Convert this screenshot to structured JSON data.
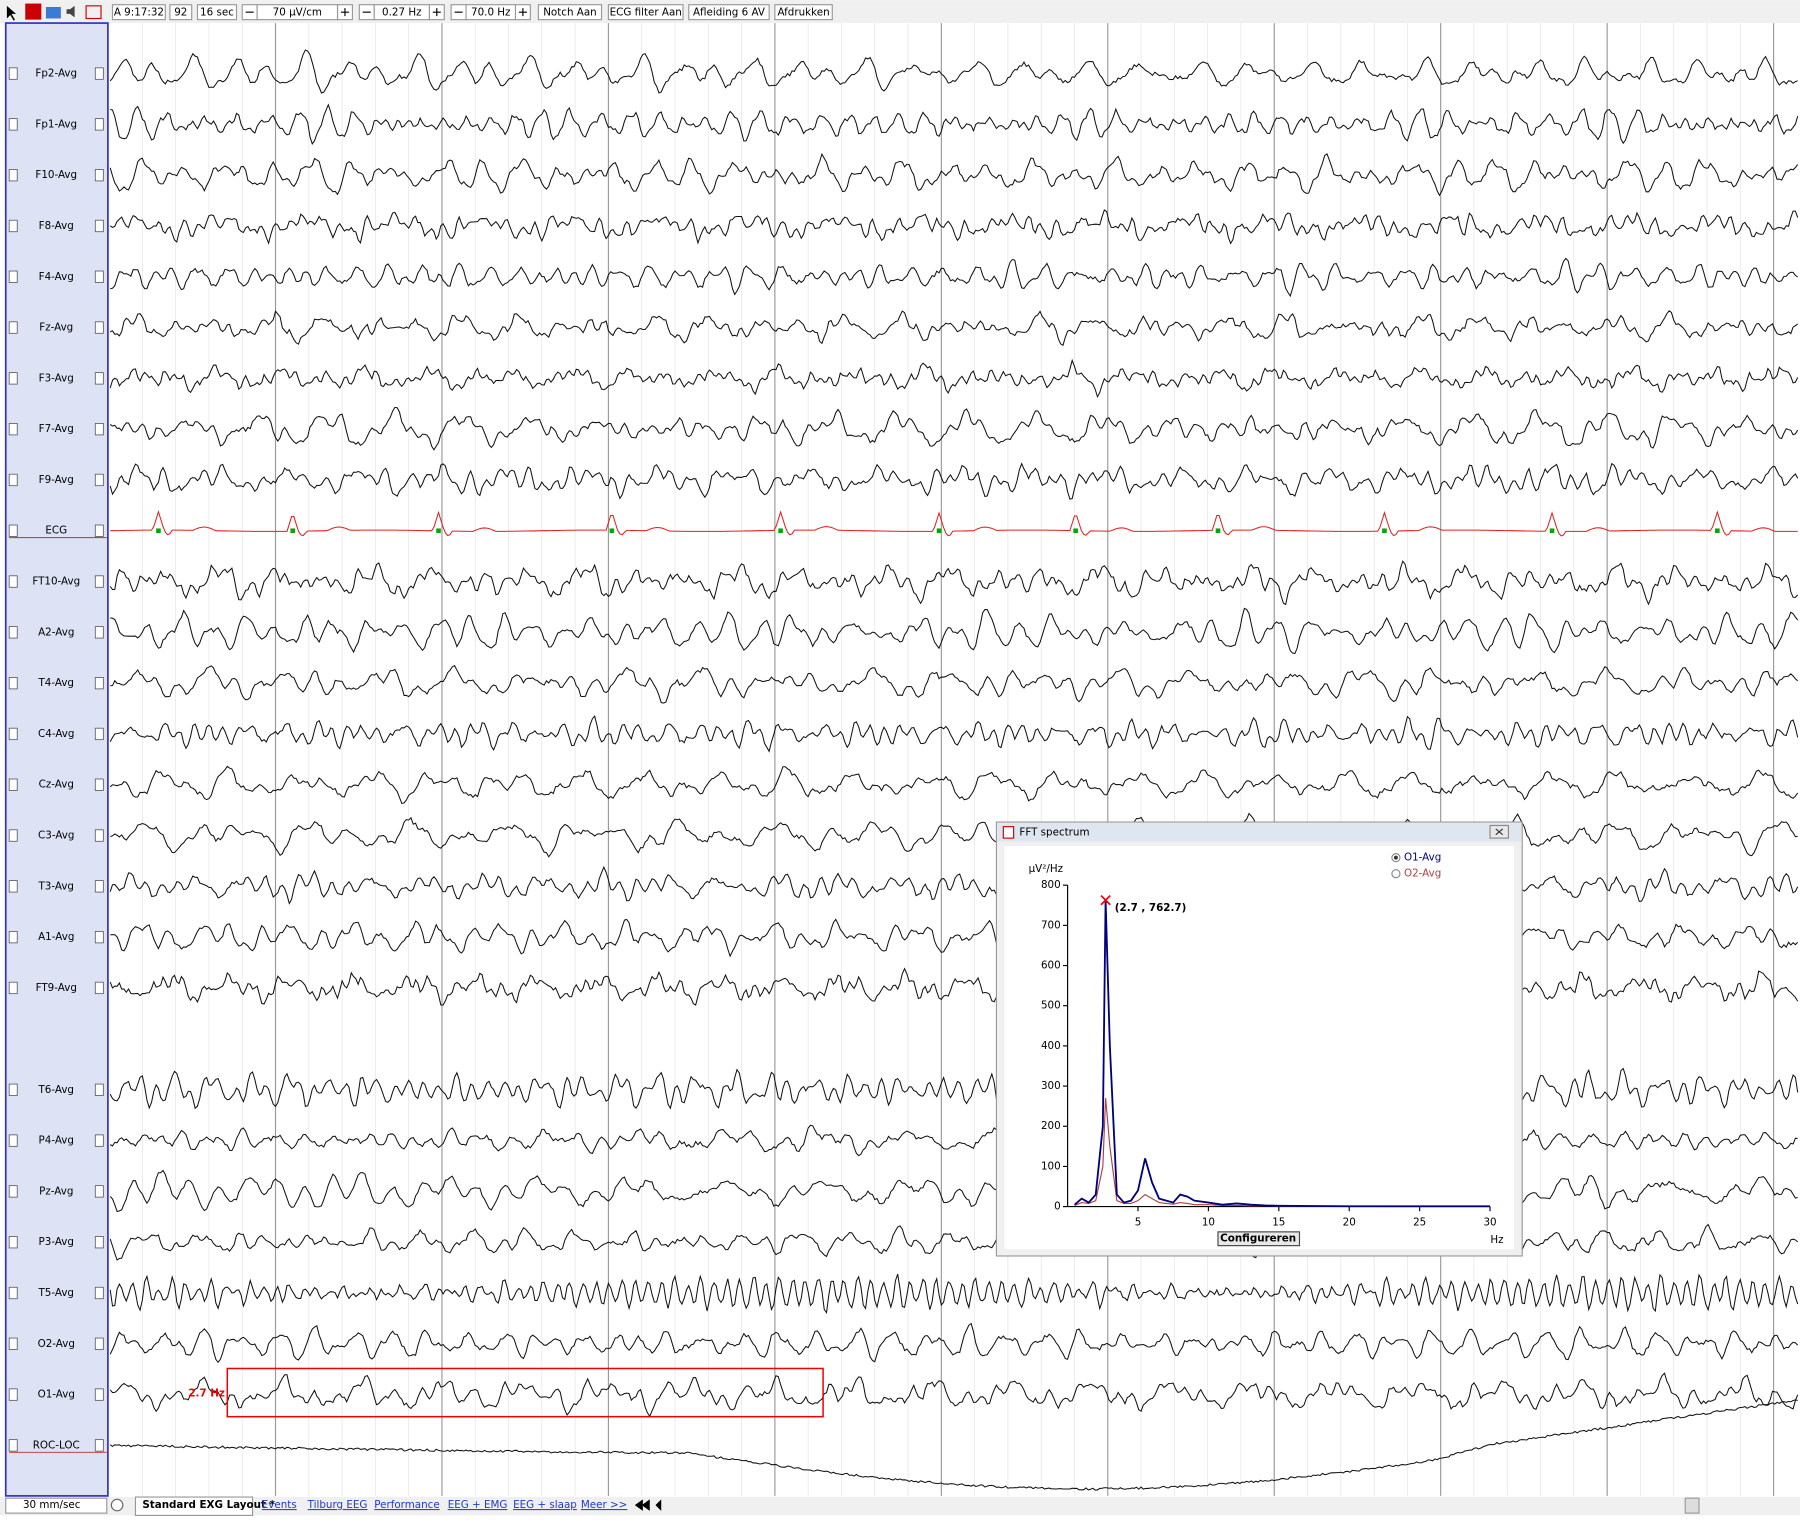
{
  "window": {
    "toolbar": [
      "A 9:17:32",
      "92",
      "16 sec",
      "70 µV/cm",
      "0.27 Hz",
      "70.0 Hz",
      "Notch Aan",
      "ECG filter Aan",
      "Afleiding 6 AV",
      "Afdrukken"
    ],
    "channels": [
      "Fp2-Avg",
      "Fp1-Avg",
      "F10-Avg",
      "F8-Avg",
      "F4-Avg",
      "Fz-Avg",
      "F3-Avg",
      "F7-Avg",
      "F9-Avg",
      "ECG",
      "FT10-Avg",
      "A2-Avg",
      "T4-Avg",
      "C4-Avg",
      "Cz-Avg",
      "C3-Avg",
      "T3-Avg",
      "A1-Avg",
      "FT9-Avg",
      "T6-Avg",
      "P4-Avg",
      "Pz-Avg",
      "P3-Avg",
      "T5-Avg",
      "O2-Avg",
      "O1-Avg",
      "ROC-LOC"
    ],
    "marker_label": "2.7 Hz",
    "fft_button": "Configureren",
    "speed": "30 mm/sec",
    "tabs": [
      "Standard EXG Layout *",
      "Events",
      "Tilburg EEG",
      "Performance",
      "EEG + EMG",
      "EEG + slaap",
      "Meer >>"
    ]
  },
  "chart_data": {
    "type": "line",
    "title": "FFT spectrum",
    "y_label": "µV²/Hz",
    "x_label": "Hz",
    "x": [
      0.5,
      1,
      1.5,
      2,
      2.5,
      2.7,
      3,
      3.5,
      4,
      4.5,
      5,
      5.5,
      6,
      6.5,
      7,
      7.5,
      8,
      8.5,
      9,
      10,
      11,
      12,
      13,
      14,
      15,
      20,
      25,
      30
    ],
    "series": [
      {
        "name": "O1-Avg",
        "color": "#000080",
        "values": [
          5,
          20,
          10,
          30,
          200,
          762.7,
          400,
          30,
          10,
          15,
          40,
          120,
          60,
          20,
          15,
          10,
          30,
          25,
          15,
          10,
          5,
          8,
          5,
          3,
          2,
          1,
          1,
          1
        ]
      },
      {
        "name": "O2-Avg",
        "color": "#b04040",
        "values": [
          3,
          10,
          8,
          15,
          100,
          270,
          150,
          15,
          8,
          8,
          15,
          30,
          20,
          10,
          8,
          6,
          10,
          8,
          5,
          5,
          3,
          3,
          2,
          2,
          1,
          1,
          0,
          0
        ]
      }
    ],
    "xlim": [
      0,
      30
    ],
    "xticks": [
      5,
      10,
      15,
      20,
      25,
      30
    ],
    "ylim": [
      0,
      800
    ],
    "yticks": [
      0,
      100,
      200,
      300,
      400,
      500,
      600,
      700,
      800
    ],
    "annotation": {
      "text": "(2.7 , 762.7)",
      "x": 2.7,
      "y": 762.7
    },
    "legend": "top-right"
  }
}
